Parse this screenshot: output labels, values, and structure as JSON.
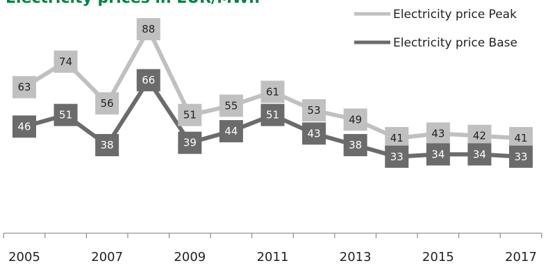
{
  "chart_data": {
    "type": "line",
    "title": "Electricity prices in EUR/MWh",
    "x": [
      2005,
      2006,
      2007,
      2008,
      2009,
      2010,
      2011,
      2012,
      2013,
      2014,
      2015,
      2016,
      2017
    ],
    "tick_labels": [
      "2005",
      "2007",
      "2009",
      "2011",
      "2013",
      "2015",
      "2017"
    ],
    "series": [
      {
        "name": "Electricity price Peak",
        "color": "#c0c0c0",
        "label_text_color": "#222222",
        "values": [
          63,
          74,
          56,
          88,
          51,
          55,
          61,
          53,
          49,
          41,
          43,
          42,
          41
        ]
      },
      {
        "name": "Electricity price Base",
        "color": "#6b6b6b",
        "label_text_color": "#ffffff",
        "values": [
          46,
          51,
          38,
          66,
          39,
          44,
          51,
          43,
          38,
          33,
          34,
          34,
          33
        ]
      }
    ],
    "legend_position": "top-right",
    "grid": false,
    "data_labels": true
  }
}
